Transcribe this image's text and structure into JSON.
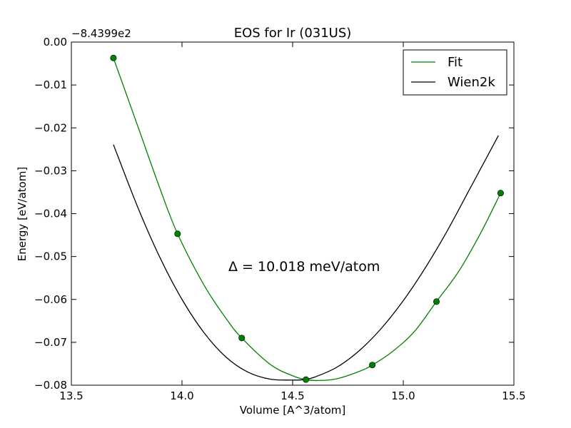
{
  "chart_data": {
    "type": "line",
    "title": "EOS for Ir (031US)",
    "xlabel": "Volume [A^3/atom]",
    "ylabel": "Energy [eV/atom]",
    "y_offset_label": "−8.4399e2",
    "xlim": [
      13.5,
      15.5
    ],
    "ylim": [
      -0.08,
      0.0
    ],
    "x_ticks": [
      13.5,
      14.0,
      14.5,
      15.0,
      15.5
    ],
    "x_tick_labels": [
      "13.5",
      "14.0",
      "14.5",
      "15.0",
      "15.5"
    ],
    "y_ticks": [
      0.0,
      -0.01,
      -0.02,
      -0.03,
      -0.04,
      -0.05,
      -0.06,
      -0.07,
      -0.08
    ],
    "y_tick_labels": [
      "0.00",
      "−0.01",
      "−0.02",
      "−0.03",
      "−0.04",
      "−0.05",
      "−0.06",
      "−0.07",
      "−0.08"
    ],
    "grid": false,
    "legend_position": "top-right",
    "annotation": "Δ = 10.018 meV/atom",
    "series": [
      {
        "name": "Fit",
        "kind": "line",
        "color": "#008000",
        "x": [
          13.69,
          13.8,
          13.9,
          13.98,
          14.1,
          14.2,
          14.27,
          14.4,
          14.5,
          14.56,
          14.62,
          14.7,
          14.8,
          14.86,
          14.95,
          15.05,
          15.15,
          15.25,
          15.35,
          15.44
        ],
        "y": [
          -0.0037,
          -0.0196,
          -0.0341,
          -0.0447,
          -0.0567,
          -0.0645,
          -0.069,
          -0.0752,
          -0.0778,
          -0.0787,
          -0.0789,
          -0.0785,
          -0.0768,
          -0.0753,
          -0.0722,
          -0.0675,
          -0.0605,
          -0.0535,
          -0.0445,
          -0.0352
        ]
      },
      {
        "name": "Wien2k",
        "kind": "line",
        "color": "#000000",
        "x": [
          13.69,
          13.8,
          13.9,
          14.0,
          14.1,
          14.2,
          14.3,
          14.4,
          14.5,
          14.55,
          14.6,
          14.7,
          14.8,
          14.9,
          15.0,
          15.1,
          15.2,
          15.3,
          15.43
        ],
        "y": [
          -0.0239,
          -0.0385,
          -0.0502,
          -0.06,
          -0.0678,
          -0.0735,
          -0.077,
          -0.0786,
          -0.0788,
          -0.0787,
          -0.0781,
          -0.0758,
          -0.072,
          -0.0668,
          -0.0603,
          -0.0526,
          -0.0439,
          -0.0343,
          -0.0218
        ]
      },
      {
        "name": "",
        "kind": "points",
        "color": "#008000",
        "x": [
          13.69,
          13.98,
          14.27,
          14.56,
          14.86,
          15.15,
          15.44
        ],
        "y": [
          -0.0037,
          -0.0447,
          -0.069,
          -0.0787,
          -0.0753,
          -0.0605,
          -0.0352
        ]
      }
    ]
  }
}
